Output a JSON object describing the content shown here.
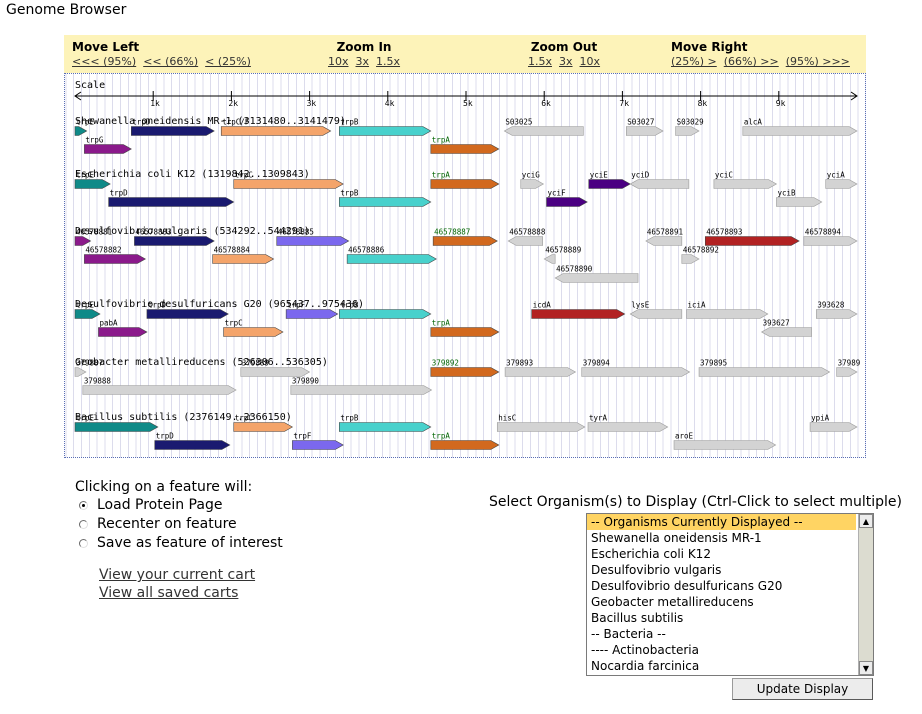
{
  "page_title": "Genome Browser",
  "nav": {
    "move_left": {
      "label": "Move Left",
      "links": [
        "<<< (95%)",
        "<< (66%)",
        "< (25%)"
      ]
    },
    "zoom_in": {
      "label": "Zoom In",
      "links": [
        "10x",
        "3x",
        "1.5x"
      ]
    },
    "zoom_out": {
      "label": "Zoom Out",
      "links": [
        "1.5x",
        "3x",
        "10x"
      ]
    },
    "move_right": {
      "label": "Move Right",
      "links": [
        "(25%) >",
        "(66%) >>",
        "(95%) >>>"
      ]
    }
  },
  "scale": {
    "label": "Scale",
    "range_bp": 10000,
    "ticks": [
      {
        "bp": 1000,
        "label": "1k"
      },
      {
        "bp": 2000,
        "label": "2k"
      },
      {
        "bp": 3000,
        "label": "3k"
      },
      {
        "bp": 4000,
        "label": "4k"
      },
      {
        "bp": 5000,
        "label": "5k"
      },
      {
        "bp": 6000,
        "label": "6k"
      },
      {
        "bp": 7000,
        "label": "7k"
      },
      {
        "bp": 8000,
        "label": "8k"
      },
      {
        "bp": 9000,
        "label": "9k"
      }
    ]
  },
  "colors": {
    "trpE": "#0f8a88",
    "trpD": "#1a1a70",
    "trpC": "#f4a46a",
    "trpF": "#7b68ee",
    "trpB": "#48d1cc",
    "trpA": "#d2691e",
    "trpG": "#8b1a8b",
    "other": "#d3d3d3",
    "purple": "#4b0082",
    "red": "#b22222",
    "label_green": "#006400",
    "label_dark": "#000000"
  },
  "organisms": [
    {
      "name": "Shewanella oneidensis MR-1 (3131480..3141479)",
      "genes": [
        {
          "label": "trpE",
          "start": 0,
          "end": 150,
          "row": 0,
          "dir": 1,
          "color": "trpE"
        },
        {
          "label": "trpD",
          "start": 720,
          "end": 1780,
          "row": 0,
          "dir": 1,
          "color": "trpD"
        },
        {
          "label": "trpC/F",
          "start": 1870,
          "end": 3270,
          "row": 0,
          "dir": 1,
          "color": "trpC"
        },
        {
          "label": "trpB",
          "start": 3380,
          "end": 4550,
          "row": 0,
          "dir": 1,
          "color": "trpB"
        },
        {
          "label": "S03025",
          "start": 5490,
          "end": 6500,
          "row": 0,
          "dir": -1,
          "color": "other"
        },
        {
          "label": "S03027",
          "start": 7050,
          "end": 7520,
          "row": 0,
          "dir": 1,
          "color": "other"
        },
        {
          "label": "S03029",
          "start": 7680,
          "end": 7980,
          "row": 0,
          "dir": 1,
          "color": "other"
        },
        {
          "label": "alcA",
          "start": 8540,
          "end": 10000,
          "row": 0,
          "dir": 1,
          "color": "other"
        },
        {
          "label": "trpG",
          "start": 120,
          "end": 720,
          "row": 1,
          "dir": 1,
          "color": "trpG"
        },
        {
          "label": "trpA",
          "start": 4550,
          "end": 5420,
          "row": 1,
          "dir": 1,
          "color": "trpA",
          "labelColor": "label_green"
        }
      ]
    },
    {
      "name": "Escherichia coli K12 (1319842..1309843)",
      "genes": [
        {
          "label": "trpE",
          "start": 0,
          "end": 450,
          "row": 0,
          "dir": 1,
          "color": "trpE"
        },
        {
          "label": "trpC",
          "start": 2030,
          "end": 3430,
          "row": 0,
          "dir": 1,
          "color": "trpC"
        },
        {
          "label": "trpA",
          "start": 4550,
          "end": 5420,
          "row": 0,
          "dir": 1,
          "color": "trpA",
          "labelColor": "label_green"
        },
        {
          "label": "yciG",
          "start": 5700,
          "end": 5990,
          "row": 0,
          "dir": 1,
          "color": "other"
        },
        {
          "label": "yciE",
          "start": 6570,
          "end": 7100,
          "row": 0,
          "dir": 1,
          "color": "purple"
        },
        {
          "label": "yciD",
          "start": 7100,
          "end": 7850,
          "row": 0,
          "dir": -1,
          "color": "other"
        },
        {
          "label": "yciC",
          "start": 8170,
          "end": 8970,
          "row": 0,
          "dir": 1,
          "color": "other"
        },
        {
          "label": "yciA",
          "start": 9600,
          "end": 10000,
          "row": 0,
          "dir": 1,
          "color": "other"
        },
        {
          "label": "trpD",
          "start": 430,
          "end": 2030,
          "row": 1,
          "dir": 1,
          "color": "trpD"
        },
        {
          "label": "trpB",
          "start": 3380,
          "end": 4550,
          "row": 1,
          "dir": 1,
          "color": "trpB"
        },
        {
          "label": "yciF",
          "start": 6030,
          "end": 6550,
          "row": 1,
          "dir": 1,
          "color": "purple"
        },
        {
          "label": "yciB",
          "start": 8970,
          "end": 9550,
          "row": 1,
          "dir": 1,
          "color": "other"
        }
      ]
    },
    {
      "name": "Desulfovibrio vulgaris (534292..544291)",
      "genes": [
        {
          "label": "46578881",
          "start": 0,
          "end": 200,
          "row": 0,
          "dir": 1,
          "color": "trpG"
        },
        {
          "label": "46578883",
          "start": 760,
          "end": 1780,
          "row": 0,
          "dir": 1,
          "color": "trpD"
        },
        {
          "label": "46578885",
          "start": 2580,
          "end": 3500,
          "row": 0,
          "dir": 1,
          "color": "trpF"
        },
        {
          "label": "46578887",
          "start": 4580,
          "end": 5400,
          "row": 0,
          "dir": 1,
          "color": "trpA",
          "labelColor": "label_green"
        },
        {
          "label": "46578888",
          "start": 5540,
          "end": 5980,
          "row": 0,
          "dir": -1,
          "color": "other"
        },
        {
          "label": "46578891",
          "start": 7300,
          "end": 7760,
          "row": 0,
          "dir": -1,
          "color": "other"
        },
        {
          "label": "46578893",
          "start": 8060,
          "end": 9260,
          "row": 0,
          "dir": 1,
          "color": "red"
        },
        {
          "label": "46578894",
          "start": 9320,
          "end": 10000,
          "row": 0,
          "dir": 1,
          "color": "other"
        },
        {
          "label": "46578882",
          "start": 120,
          "end": 900,
          "row": 1,
          "dir": 1,
          "color": "trpG"
        },
        {
          "label": "46578884",
          "start": 1760,
          "end": 2540,
          "row": 1,
          "dir": 1,
          "color": "trpC"
        },
        {
          "label": "46578886",
          "start": 3480,
          "end": 4620,
          "row": 1,
          "dir": 1,
          "color": "trpB"
        },
        {
          "label": "46578889",
          "start": 6000,
          "end": 6140,
          "row": 1,
          "dir": -1,
          "color": "other"
        },
        {
          "label": "46578892",
          "start": 7760,
          "end": 7980,
          "row": 1,
          "dir": 1,
          "color": "other"
        },
        {
          "label": "46578890",
          "start": 6140,
          "end": 7200,
          "row": 2,
          "dir": -1,
          "color": "other"
        }
      ]
    },
    {
      "name": "Desulfovibrio desulfuricans G20 (965437..975436)",
      "genes": [
        {
          "label": "trpE",
          "start": 0,
          "end": 320,
          "row": 0,
          "dir": 1,
          "color": "trpE"
        },
        {
          "label": "trpD",
          "start": 920,
          "end": 1960,
          "row": 0,
          "dir": 1,
          "color": "trpD"
        },
        {
          "label": "trpF",
          "start": 2700,
          "end": 3360,
          "row": 0,
          "dir": 1,
          "color": "trpF"
        },
        {
          "label": "trpB",
          "start": 3380,
          "end": 4550,
          "row": 0,
          "dir": 1,
          "color": "trpB"
        },
        {
          "label": "icdA",
          "start": 5840,
          "end": 7030,
          "row": 0,
          "dir": 1,
          "color": "red"
        },
        {
          "label": "lysE",
          "start": 7100,
          "end": 7760,
          "row": 0,
          "dir": -1,
          "color": "other"
        },
        {
          "label": "iciA",
          "start": 7820,
          "end": 8860,
          "row": 0,
          "dir": 1,
          "color": "other"
        },
        {
          "label": "393628",
          "start": 9480,
          "end": 10000,
          "row": 0,
          "dir": 1,
          "color": "other"
        },
        {
          "label": "pabA",
          "start": 300,
          "end": 920,
          "row": 1,
          "dir": 1,
          "color": "trpG"
        },
        {
          "label": "trpC",
          "start": 1900,
          "end": 2660,
          "row": 1,
          "dir": 1,
          "color": "trpC"
        },
        {
          "label": "trpA",
          "start": 4550,
          "end": 5420,
          "row": 1,
          "dir": 1,
          "color": "trpA",
          "labelColor": "label_green"
        },
        {
          "label": "393627",
          "start": 8780,
          "end": 9420,
          "row": 1,
          "dir": -1,
          "color": "other"
        }
      ]
    },
    {
      "name": "Geobacter metallireducens (526306..536305)",
      "genes": [
        {
          "label": "379887",
          "start": 0,
          "end": 140,
          "row": 0,
          "dir": 1,
          "color": "other"
        },
        {
          "label": "379889",
          "start": 2120,
          "end": 3000,
          "row": 0,
          "dir": 1,
          "color": "other"
        },
        {
          "label": "379892",
          "start": 4550,
          "end": 5420,
          "row": 0,
          "dir": 1,
          "color": "trpA",
          "labelColor": "label_green"
        },
        {
          "label": "379893",
          "start": 5500,
          "end": 6400,
          "row": 0,
          "dir": 1,
          "color": "other"
        },
        {
          "label": "379894",
          "start": 6480,
          "end": 7860,
          "row": 0,
          "dir": 1,
          "color": "other"
        },
        {
          "label": "379895",
          "start": 7980,
          "end": 9650,
          "row": 0,
          "dir": 1,
          "color": "other"
        },
        {
          "label": "37989",
          "start": 9740,
          "end": 10000,
          "row": 0,
          "dir": 1,
          "color": "other"
        },
        {
          "label": "379888",
          "start": 100,
          "end": 2060,
          "row": 1,
          "dir": 1,
          "color": "other"
        },
        {
          "label": "379890",
          "start": 2760,
          "end": 4560,
          "row": 1,
          "dir": 1,
          "color": "other"
        }
      ]
    },
    {
      "name": "Bacillus subtilis (2376149..2366150)",
      "genes": [
        {
          "label": "trpE",
          "start": 0,
          "end": 1060,
          "row": 0,
          "dir": 1,
          "color": "trpE"
        },
        {
          "label": "trpC",
          "start": 2030,
          "end": 2780,
          "row": 0,
          "dir": 1,
          "color": "trpC"
        },
        {
          "label": "trpB",
          "start": 3380,
          "end": 4550,
          "row": 0,
          "dir": 1,
          "color": "trpB"
        },
        {
          "label": "hisC",
          "start": 5400,
          "end": 6520,
          "row": 0,
          "dir": 1,
          "color": "other"
        },
        {
          "label": "tyrA",
          "start": 6560,
          "end": 7580,
          "row": 0,
          "dir": 1,
          "color": "other"
        },
        {
          "label": "ypiA",
          "start": 9400,
          "end": 10000,
          "row": 0,
          "dir": 1,
          "color": "other"
        },
        {
          "label": "trpD",
          "start": 1020,
          "end": 1980,
          "row": 1,
          "dir": 1,
          "color": "trpD"
        },
        {
          "label": "trpF",
          "start": 2780,
          "end": 3430,
          "row": 1,
          "dir": 1,
          "color": "trpF"
        },
        {
          "label": "trpA",
          "start": 4550,
          "end": 5420,
          "row": 1,
          "dir": 1,
          "color": "trpA",
          "labelColor": "label_green"
        },
        {
          "label": "aroE",
          "start": 7660,
          "end": 8960,
          "row": 1,
          "dir": 1,
          "color": "other"
        }
      ]
    }
  ],
  "click_options": {
    "title": "Clicking on a feature will:",
    "options": [
      "Load Protein Page",
      "Recenter on feature",
      "Save as feature of interest"
    ],
    "selected": 0
  },
  "cart_links": [
    "View your current cart",
    "View all saved carts"
  ],
  "org_select": {
    "title": "Select Organism(s) to Display (Ctrl-Click to select multiple)",
    "items": [
      "-- Organisms Currently Displayed --",
      "Shewanella oneidensis MR-1",
      "Escherichia coli K12",
      "Desulfovibrio vulgaris",
      "Desulfovibrio desulfuricans G20",
      "Geobacter metallireducens",
      "Bacillus subtilis",
      "-- Bacteria --",
      "---- Actinobacteria",
      "Nocardia farcinica"
    ],
    "selected": 0,
    "scroll_up_icon": "triangle-up",
    "scroll_down_icon": "triangle-down"
  },
  "update_button": "Update Display"
}
